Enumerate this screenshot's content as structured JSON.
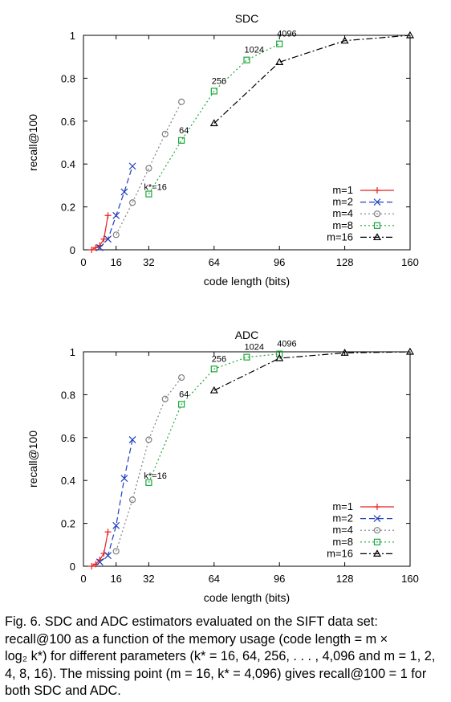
{
  "chart_data": [
    {
      "type": "line",
      "title": "SDC",
      "xlabel": "code length (bits)",
      "ylabel": "recall@100",
      "xlim": [
        0,
        160
      ],
      "ylim": [
        0,
        1
      ],
      "xticks": [
        0,
        16,
        32,
        64,
        96,
        128,
        160
      ],
      "yticks": [
        0,
        0.2,
        0.4,
        0.6,
        0.8,
        1
      ],
      "grid": false,
      "legend_position": "bottom-right",
      "series": [
        {
          "name": "m=1",
          "color": "#e8221e",
          "dash": "solid",
          "marker": "plus",
          "x": [
            4,
            6,
            8,
            10,
            12
          ],
          "y": [
            0.0,
            0.01,
            0.02,
            0.05,
            0.16
          ]
        },
        {
          "name": "m=2",
          "color": "#1f3fbf",
          "dash": "dashed",
          "marker": "cross",
          "x": [
            8,
            12,
            16,
            20,
            24
          ],
          "y": [
            0.01,
            0.05,
            0.16,
            0.27,
            0.39
          ]
        },
        {
          "name": "m=4",
          "color": "#808080",
          "dash": "dotted",
          "marker": "circle",
          "x": [
            16,
            24,
            32,
            40,
            48
          ],
          "y": [
            0.07,
            0.22,
            0.38,
            0.54,
            0.69
          ]
        },
        {
          "name": "m=8",
          "color": "#1aa83a",
          "dash": "dotted",
          "marker": "square",
          "x": [
            32,
            48,
            64,
            80,
            96
          ],
          "y": [
            0.26,
            0.51,
            0.74,
            0.885,
            0.96
          ]
        },
        {
          "name": "m=16",
          "color": "#000000",
          "dash": "dashdot",
          "marker": "triangle",
          "x": [
            64,
            96,
            128,
            160
          ],
          "y": [
            0.59,
            0.875,
            0.975,
            1.0
          ]
        }
      ],
      "annotations": [
        {
          "text": "k*=16",
          "x": 32,
          "y": 0.26
        },
        {
          "text": "64",
          "x": 48,
          "y": 0.51
        },
        {
          "text": "256",
          "x": 64,
          "y": 0.74
        },
        {
          "text": "1024",
          "x": 80,
          "y": 0.885
        },
        {
          "text": "4096",
          "x": 96,
          "y": 0.96
        }
      ]
    },
    {
      "type": "line",
      "title": "ADC",
      "xlabel": "code length (bits)",
      "ylabel": "recall@100",
      "xlim": [
        0,
        160
      ],
      "ylim": [
        0,
        1
      ],
      "xticks": [
        0,
        16,
        32,
        64,
        96,
        128,
        160
      ],
      "yticks": [
        0,
        0.2,
        0.4,
        0.6,
        0.8,
        1
      ],
      "grid": false,
      "legend_position": "bottom-right",
      "series": [
        {
          "name": "m=1",
          "color": "#e8221e",
          "dash": "solid",
          "marker": "plus",
          "x": [
            4,
            6,
            8,
            10,
            12
          ],
          "y": [
            0.0,
            0.01,
            0.03,
            0.06,
            0.16
          ]
        },
        {
          "name": "m=2",
          "color": "#1f3fbf",
          "dash": "dashed",
          "marker": "cross",
          "x": [
            8,
            12,
            16,
            20,
            24
          ],
          "y": [
            0.02,
            0.05,
            0.19,
            0.41,
            0.59
          ]
        },
        {
          "name": "m=4",
          "color": "#808080",
          "dash": "dotted",
          "marker": "circle",
          "x": [
            16,
            24,
            32,
            40,
            48
          ],
          "y": [
            0.07,
            0.31,
            0.59,
            0.78,
            0.88
          ]
        },
        {
          "name": "m=8",
          "color": "#1aa83a",
          "dash": "dotted",
          "marker": "square",
          "x": [
            32,
            48,
            64,
            80,
            96
          ],
          "y": [
            0.39,
            0.755,
            0.92,
            0.975,
            0.99
          ]
        },
        {
          "name": "m=16",
          "color": "#000000",
          "dash": "dashdot",
          "marker": "triangle",
          "x": [
            64,
            96,
            128,
            160
          ],
          "y": [
            0.82,
            0.97,
            0.995,
            1.0
          ]
        }
      ],
      "annotations": [
        {
          "text": "k*=16",
          "x": 32,
          "y": 0.39
        },
        {
          "text": "64",
          "x": 48,
          "y": 0.755
        },
        {
          "text": "256",
          "x": 64,
          "y": 0.92
        },
        {
          "text": "1024",
          "x": 80,
          "y": 0.975
        },
        {
          "text": "4096",
          "x": 96,
          "y": 0.99
        }
      ]
    }
  ],
  "caption": {
    "line1": "Fig. 6. SDC and ADC estimators evaluated on the SIFT data set:",
    "line2": "recall@100 as a function of the memory usage (code length = m ×",
    "line3": "log₂ k*) for different parameters (k* = 16, 64, 256, . . . , 4,096 and m = 1, 2,",
    "line4": "4, 8, 16). The missing point (m = 16, k* = 4,096) gives recall@100 = 1 for",
    "line5": "both SDC and ADC."
  }
}
